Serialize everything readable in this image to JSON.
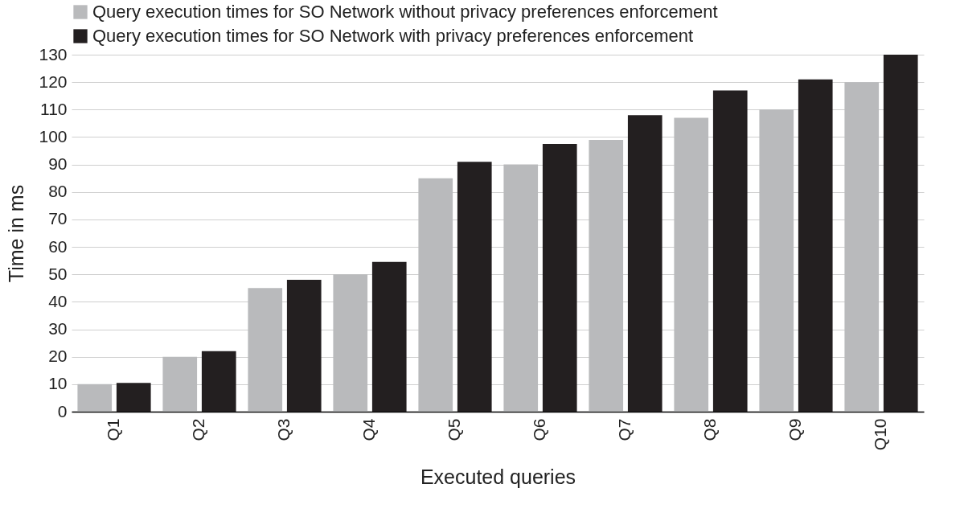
{
  "chart_data": {
    "type": "bar",
    "xlabel": "Executed queries",
    "ylabel": "Time in ms",
    "categories": [
      "Q1",
      "Q2",
      "Q3",
      "Q4",
      "Q5",
      "Q6",
      "Q7",
      "Q8",
      "Q9",
      "Q10"
    ],
    "series": [
      {
        "name": "Query execution times for  SO Network without privacy preferences enforcement",
        "color": "#b9babc",
        "values": [
          10,
          20,
          45,
          50,
          85,
          90,
          99,
          107,
          110,
          120
        ]
      },
      {
        "name": "Query execution times for  SO Network with privacy preferences enforcement",
        "color": "#231f20",
        "values": [
          10.5,
          22,
          48,
          54.5,
          91,
          97.5,
          108,
          117,
          121,
          130
        ]
      }
    ],
    "ylim": [
      0,
      130
    ],
    "yticks": [
      0,
      10,
      20,
      30,
      40,
      50,
      60,
      70,
      80,
      90,
      100,
      110,
      120,
      130
    ],
    "grid": "y",
    "legend": "top left"
  }
}
